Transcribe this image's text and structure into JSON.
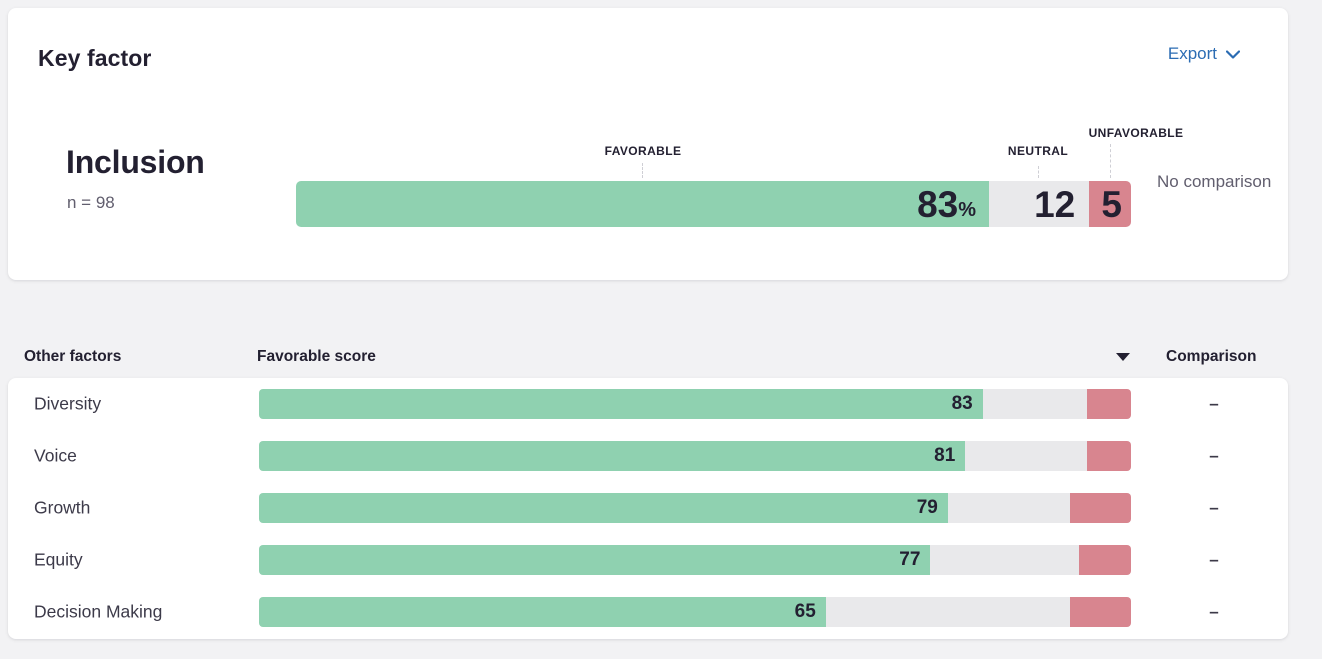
{
  "colors": {
    "favorable": "#8fd1b0",
    "neutral": "#e9e9eb",
    "unfavorable": "#d8858f",
    "accent_blue": "#2b6cb3"
  },
  "key_card": {
    "title": "Key factor",
    "export_label": "Export",
    "factor": {
      "name": "Inclusion",
      "sample_label": "n = 98"
    },
    "segment_labels": {
      "favorable": "FAVORABLE",
      "neutral": "NEUTRAL",
      "unfavorable": "UNFAVORABLE"
    },
    "scores": {
      "favorable": 83,
      "neutral": 12,
      "unfavorable": 5
    },
    "percent_sign": "%",
    "no_comparison_label": "No comparison"
  },
  "table": {
    "col_factors": "Other factors",
    "col_score": "Favorable score",
    "col_comparison": "Comparison",
    "rows": [
      {
        "label": "Diversity",
        "favorable": 83,
        "neutral": 12,
        "unfavorable": 5,
        "comparison": "–"
      },
      {
        "label": "Voice",
        "favorable": 81,
        "neutral": 14,
        "unfavorable": 5,
        "comparison": "–"
      },
      {
        "label": "Growth",
        "favorable": 79,
        "neutral": 14,
        "unfavorable": 7,
        "comparison": "–"
      },
      {
        "label": "Equity",
        "favorable": 77,
        "neutral": 17,
        "unfavorable": 6,
        "comparison": "–"
      },
      {
        "label": "Decision Making",
        "favorable": 65,
        "neutral": 28,
        "unfavorable": 7,
        "comparison": "–"
      }
    ]
  },
  "chart_data": [
    {
      "type": "bar",
      "title": "Inclusion (Key factor), n = 98",
      "orientation": "horizontal-stacked-100pct",
      "categories": [
        "Favorable",
        "Neutral",
        "Unfavorable"
      ],
      "values": [
        83,
        12,
        5
      ],
      "value_labels": [
        "83%",
        "12",
        "5"
      ],
      "legend_position": "above-bar",
      "annotations": [
        "No comparison"
      ]
    },
    {
      "type": "bar",
      "title": "Other factors — Favorable score",
      "orientation": "horizontal-stacked-100pct",
      "categories": [
        "Diversity",
        "Voice",
        "Growth",
        "Equity",
        "Decision Making"
      ],
      "series": [
        {
          "name": "Favorable",
          "values": [
            83,
            81,
            79,
            77,
            65
          ]
        },
        {
          "name": "Neutral",
          "values": [
            12,
            14,
            14,
            17,
            28
          ]
        },
        {
          "name": "Unfavorable",
          "values": [
            5,
            5,
            7,
            6,
            7
          ]
        }
      ],
      "xlim": [
        0,
        100
      ],
      "grid": false,
      "comparison_column": [
        "–",
        "–",
        "–",
        "–",
        "–"
      ]
    }
  ]
}
